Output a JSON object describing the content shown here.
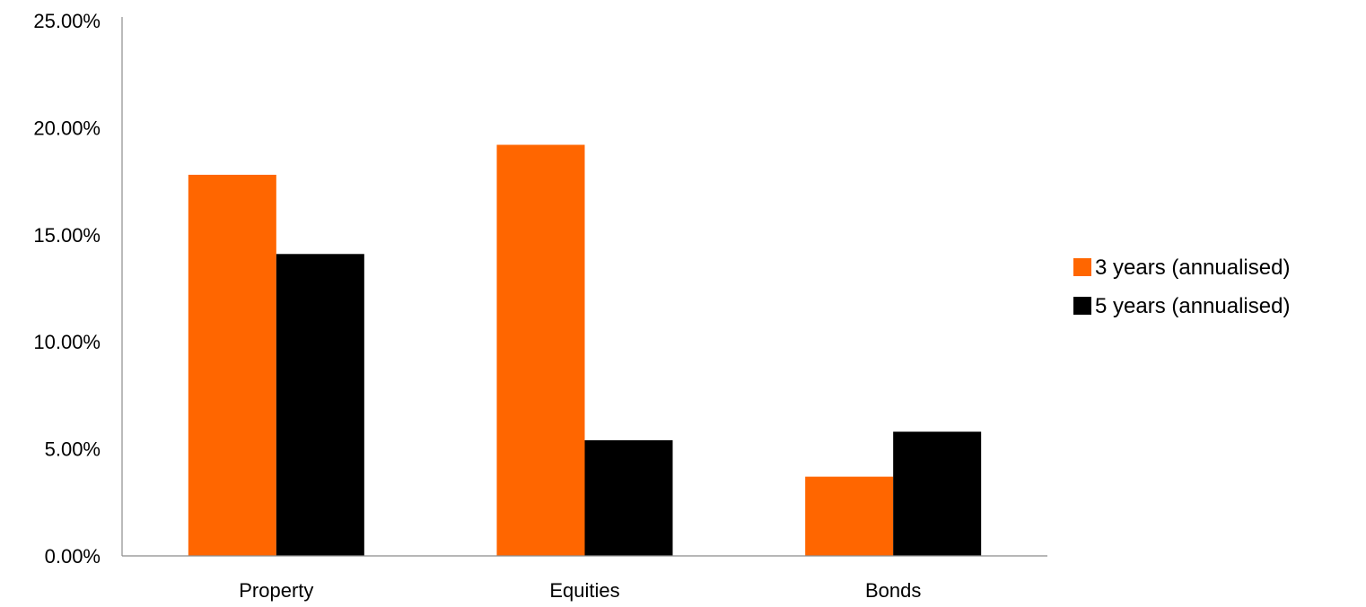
{
  "chart_data": {
    "type": "bar",
    "title": "",
    "xlabel": "",
    "ylabel": "",
    "categories": [
      "Property",
      "Equities",
      "Bonds"
    ],
    "series": [
      {
        "name": "3 years (annualised)",
        "color": "#ff6600",
        "values": [
          17.8,
          19.2,
          3.7
        ]
      },
      {
        "name": "5 years (annualised)",
        "color": "#000000",
        "values": [
          14.1,
          5.4,
          5.8
        ]
      }
    ],
    "ylim": [
      0,
      25
    ],
    "yticks": [
      0,
      5,
      10,
      15,
      20,
      25
    ],
    "ytick_labels": [
      "0.00%",
      "5.00%",
      "10.00%",
      "15.00%",
      "20.00%",
      "25.00%"
    ],
    "grid": false,
    "legend_position": "right"
  }
}
